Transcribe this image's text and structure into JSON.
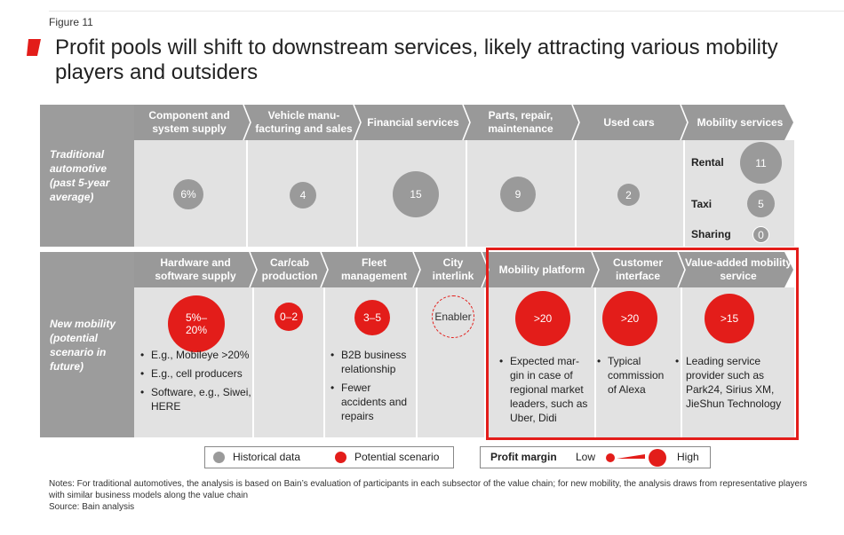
{
  "figure_label": "Figure 11",
  "title": "Profit pools will shift to downstream services, likely attracting various mobility players and outsiders",
  "colors": {
    "accent": "#e31d1a",
    "historical": "#9a9a9a",
    "header": "#999999",
    "band": "#e2e2e2"
  },
  "traditional": {
    "row_label": "Traditional automotive (past 5-year average)",
    "headers": [
      "Component and system supply",
      "Vehicle manu- facturing and sales",
      "Financial services",
      "Parts, repair, maintenance",
      "Used cars",
      "Mobility services"
    ],
    "values": [
      "6%",
      "4",
      "15",
      "9",
      "2"
    ],
    "mobility_services": [
      {
        "label": "Rental",
        "value": "11"
      },
      {
        "label": "Taxi",
        "value": "5"
      },
      {
        "label": "Sharing",
        "value": "0"
      }
    ]
  },
  "new_mobility": {
    "row_label": "New mobility (potential scenario in future)",
    "headers": [
      "Hardware and software supply",
      "Car/cab production",
      "Fleet management",
      "City interlink",
      "Mobility platform",
      "Customer interface",
      "Value-added mobility service"
    ],
    "values": [
      "5%– 20%",
      "0–2",
      "3–5",
      "Enabler",
      ">20",
      ">20",
      ">15"
    ],
    "bullets": {
      "hardware": [
        "E.g., Mobileye >20%",
        "E.g., cell producers",
        "Software, e.g., Siwei, HERE"
      ],
      "fleet": [
        "B2B business relationship",
        "Fewer accidents and repairs"
      ],
      "platform": [
        "Expected mar- gin in case of regional market leaders, such as Uber, Didi"
      ],
      "interface": [
        "Typical commission of Alexa"
      ],
      "value_added": [
        "Leading service provider such as Park24, Sirius XM, JieShun Technology"
      ]
    }
  },
  "legend": {
    "historical": "Historical data",
    "potential": "Potential scenario",
    "profit_margin": "Profit margin",
    "low": "Low",
    "high": "High"
  },
  "notes": "Notes: For traditional automotives, the analysis is based on Bain’s evaluation of participants in each subsector of the value chain; for new mobility, the analysis draws from representative players with similar business models along the value chain",
  "source": "Source: Bain analysis"
}
